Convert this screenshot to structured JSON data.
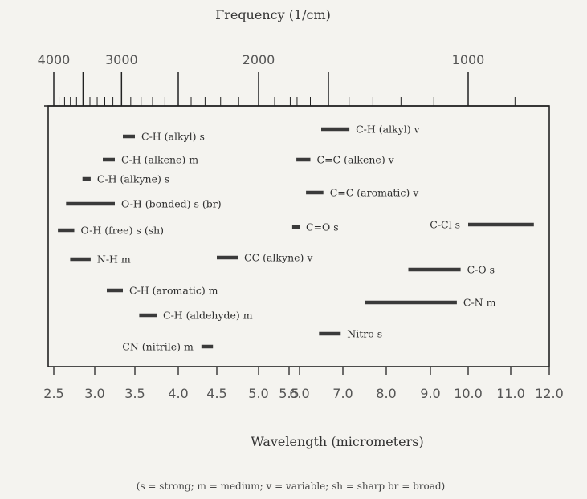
{
  "chart_data": {
    "type": "range-bar",
    "top_axis": {
      "title": "Frequency (1/cm)",
      "tick_labels": [
        "4000",
        "3000",
        "2000",
        "1000"
      ],
      "tick_values": [
        4000,
        3000,
        2000,
        1000
      ]
    },
    "bottom_axis": {
      "title": "Wavelength (micrometers)",
      "tick_labels": [
        "2.5",
        "3.0",
        "3.5",
        "4.0",
        "4.5",
        "5.0",
        "5.5",
        "6.0",
        "7.0",
        "8.0",
        "9.0",
        "10.0",
        "11.0",
        "12.0"
      ],
      "xlim": [
        2.5,
        12.0
      ]
    },
    "footnote": "(s = strong; m = medium; v = variable; sh = sharp br = broad)",
    "bands": [
      {
        "label": "C-H (alkyl) s",
        "x_start": 3.35,
        "x_end": 3.5
      },
      {
        "label": "C-H (alkyl) v",
        "x_start": 6.5,
        "x_end": 7.15
      },
      {
        "label": "C-H (alkene) m",
        "x_start": 3.1,
        "x_end": 3.25
      },
      {
        "label": "C=C (alkene) v",
        "x_start": 5.85,
        "x_end": 6.25
      },
      {
        "label": "C-H (alkyne) s",
        "x_start": 2.85,
        "x_end": 2.95
      },
      {
        "label": "C=C (aromatic) v",
        "x_start": 6.15,
        "x_end": 6.55
      },
      {
        "label": "O-H (bonded) s (br)",
        "x_start": 2.65,
        "x_end": 3.25
      },
      {
        "label": "O-H (free) s (sh)",
        "x_start": 2.55,
        "x_end": 2.75
      },
      {
        "label": "C=O s",
        "x_start": 5.65,
        "x_end": 6.0
      },
      {
        "label": "C-Cl s",
        "x_start": 10.0,
        "x_end": 11.6
      },
      {
        "label": "N-H m",
        "x_start": 2.7,
        "x_end": 2.95
      },
      {
        "label": "CC (alkyne) v",
        "x_start": 4.5,
        "x_end": 4.75
      },
      {
        "label": "C-O s",
        "x_start": 8.5,
        "x_end": 9.8
      },
      {
        "label": "C-H (aromatic) m",
        "x_start": 3.15,
        "x_end": 3.35
      },
      {
        "label": "C-N m",
        "x_start": 7.5,
        "x_end": 9.7
      },
      {
        "label": "C-H (aldehyde) m",
        "x_start": 3.55,
        "x_end": 3.75
      },
      {
        "label": "Nitro s",
        "x_start": 6.45,
        "x_end": 6.95
      },
      {
        "label": "CN (nitrile) m",
        "x_start": 4.3,
        "x_end": 4.45
      }
    ]
  }
}
